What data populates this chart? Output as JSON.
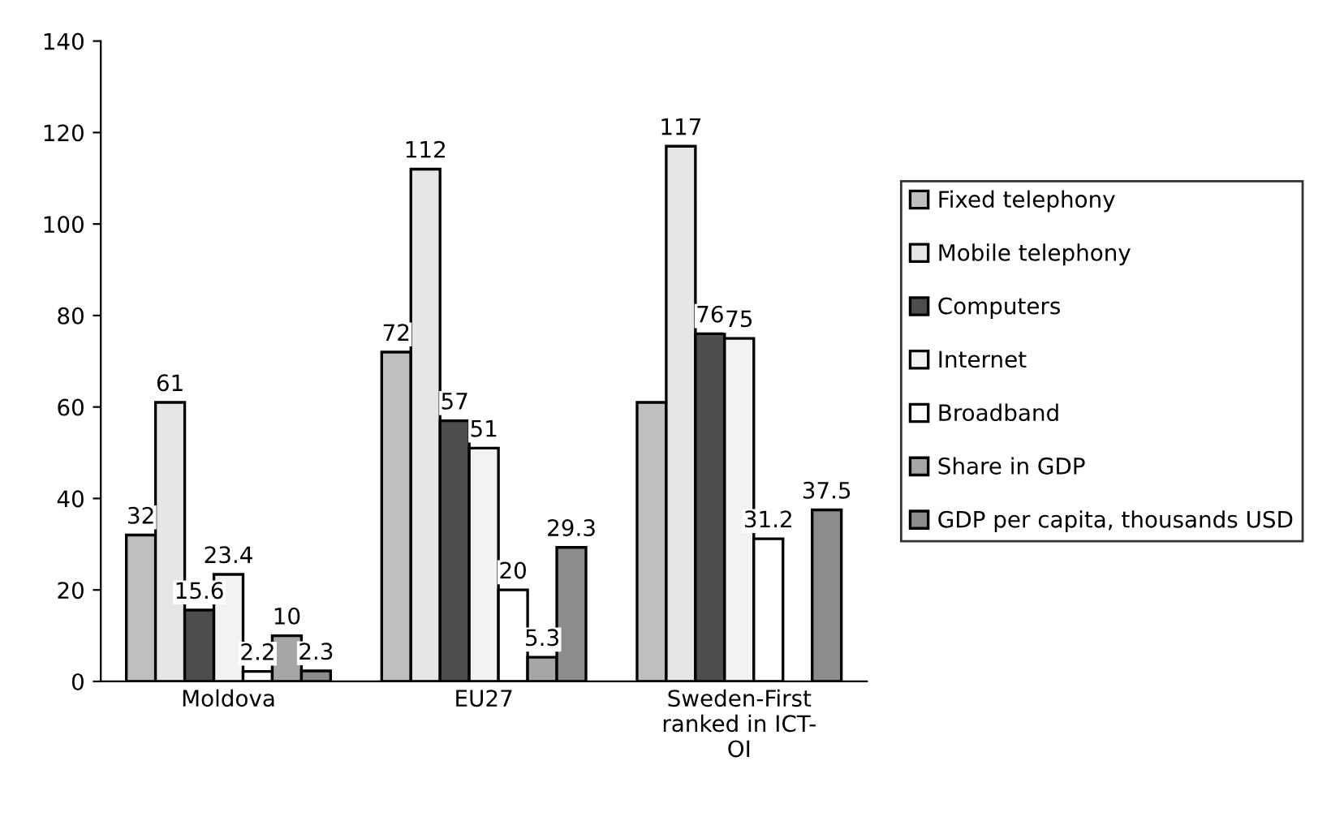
{
  "chart_data": {
    "type": "bar",
    "categories": [
      "Moldova",
      "EU27",
      "Sweden-First\nranked in ICT-\nOI"
    ],
    "series": [
      {
        "name": "Fixed telephony",
        "color": "#bfbfbf",
        "values": [
          32,
          72,
          61
        ],
        "value_labels": [
          "32",
          "72",
          null
        ]
      },
      {
        "name": "Mobile telephony",
        "color": "#e6e6e6",
        "values": [
          61,
          112,
          117
        ],
        "value_labels": [
          "61",
          "112",
          "117"
        ]
      },
      {
        "name": "Computers",
        "color": "#4d4d4d",
        "values": [
          15.6,
          57,
          76
        ],
        "value_labels": [
          "15.6",
          "57",
          "76"
        ]
      },
      {
        "name": "Internet",
        "color": "#f2f2f2",
        "values": [
          23.4,
          51,
          75
        ],
        "value_labels": [
          "23.4",
          "51",
          "75"
        ]
      },
      {
        "name": "Broadband",
        "color": "#ffffff",
        "values": [
          2.2,
          20,
          31.2
        ],
        "value_labels": [
          "2.2",
          "20",
          "31.2"
        ]
      },
      {
        "name": "Share in GDP",
        "color": "#a6a6a6",
        "values": [
          10,
          5.3,
          null
        ],
        "value_labels": [
          "10",
          "5.3",
          null
        ]
      },
      {
        "name": "GDP per capita, thousands USD",
        "color": "#8c8c8c",
        "values": [
          2.3,
          29.3,
          37.5
        ],
        "value_labels": [
          "2.3",
          "29.3",
          "37.5"
        ]
      }
    ],
    "ylim": [
      0,
      140
    ],
    "yticks": [
      0,
      20,
      40,
      60,
      80,
      100,
      120,
      140
    ],
    "grid": false,
    "legend": "right"
  }
}
